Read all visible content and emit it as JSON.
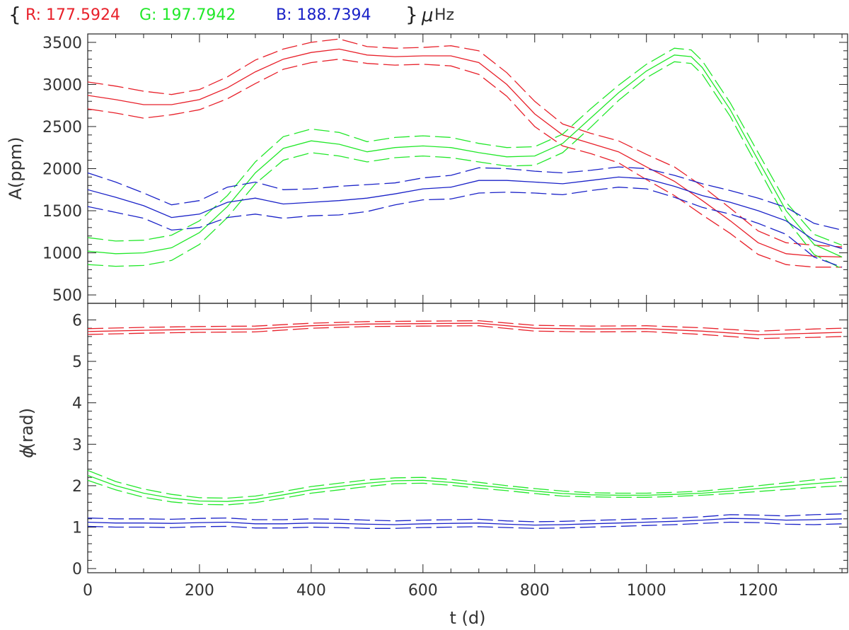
{
  "title": {
    "open": "{",
    "r_label": "R: 177.5924",
    "g_label": "G: 197.7942",
    "b_label": "B: 188.7394",
    "close": "}",
    "unit_mu": "μ",
    "unit_hz": "Hz"
  },
  "colors": {
    "R": "#e8202a",
    "G": "#22e82a",
    "B": "#1a22c8",
    "axis": "#222222",
    "text": "#333333"
  },
  "chart_data": [
    {
      "type": "line",
      "panel": "amplitude",
      "ylabel": "A(ppm)",
      "xlabel": "",
      "xlim": [
        0,
        1360
      ],
      "ylim": [
        400,
        3600
      ],
      "yticks": [
        500,
        1000,
        1500,
        2000,
        2500,
        3000,
        3500
      ],
      "ytick_labels": [
        "500",
        "1000",
        "1500",
        "2000",
        "2500",
        "3000",
        "3500"
      ],
      "band_style": "dashed upper and lower bounds around solid central line",
      "series": [
        {
          "color_key": "R",
          "x": [
            0,
            50,
            100,
            150,
            200,
            250,
            300,
            350,
            400,
            450,
            500,
            550,
            600,
            650,
            700,
            750,
            800,
            850,
            900,
            950,
            1000,
            1050,
            1100,
            1150,
            1200,
            1250,
            1300,
            1350
          ],
          "y": [
            2870,
            2820,
            2760,
            2760,
            2820,
            2960,
            3150,
            3300,
            3380,
            3420,
            3350,
            3330,
            3340,
            3340,
            3260,
            3000,
            2650,
            2400,
            2300,
            2200,
            2020,
            1850,
            1620,
            1380,
            1120,
            990,
            960,
            950
          ],
          "err": [
            160,
            160,
            160,
            120,
            120,
            130,
            140,
            120,
            120,
            120,
            100,
            100,
            100,
            120,
            140,
            140,
            150,
            130,
            120,
            130,
            150,
            170,
            170,
            150,
            140,
            130,
            130,
            120
          ]
        },
        {
          "color_key": "G",
          "x": [
            0,
            50,
            100,
            150,
            200,
            250,
            300,
            350,
            400,
            450,
            500,
            550,
            600,
            650,
            700,
            750,
            800,
            850,
            900,
            950,
            1000,
            1050,
            1080,
            1100,
            1150,
            1200,
            1250,
            1300,
            1350
          ],
          "y": [
            1020,
            990,
            1000,
            1060,
            1240,
            1550,
            1950,
            2240,
            2330,
            2290,
            2200,
            2250,
            2270,
            2250,
            2190,
            2140,
            2150,
            2300,
            2600,
            2900,
            3160,
            3350,
            3330,
            3200,
            2700,
            2100,
            1500,
            1100,
            950
          ],
          "err": [
            160,
            150,
            150,
            150,
            140,
            130,
            130,
            140,
            140,
            140,
            120,
            120,
            120,
            120,
            110,
            110,
            110,
            110,
            110,
            90,
            80,
            80,
            80,
            80,
            80,
            90,
            100,
            120,
            140
          ]
        },
        {
          "color_key": "B",
          "x": [
            0,
            50,
            100,
            150,
            200,
            250,
            300,
            350,
            400,
            450,
            500,
            550,
            600,
            650,
            700,
            750,
            800,
            850,
            900,
            950,
            1000,
            1050,
            1100,
            1150,
            1200,
            1250,
            1300,
            1350
          ],
          "y": [
            1750,
            1660,
            1560,
            1420,
            1460,
            1600,
            1650,
            1580,
            1600,
            1620,
            1650,
            1700,
            1760,
            1780,
            1860,
            1860,
            1840,
            1820,
            1860,
            1900,
            1880,
            1790,
            1680,
            1600,
            1500,
            1380,
            1150,
            1050
          ],
          "err": [
            200,
            180,
            150,
            150,
            160,
            180,
            190,
            170,
            160,
            170,
            160,
            130,
            130,
            140,
            150,
            140,
            130,
            130,
            120,
            120,
            120,
            130,
            140,
            140,
            150,
            160,
            200,
            220
          ]
        }
      ]
    },
    {
      "type": "line",
      "panel": "phase",
      "ylabel_symbol": "ϕ",
      "ylabel_text": "(rad)",
      "xlabel": "t (d)",
      "xlim": [
        0,
        1360
      ],
      "ylim": [
        -0.1,
        6.4
      ],
      "yticks": [
        0,
        1,
        2,
        3,
        4,
        5,
        6
      ],
      "ytick_labels": [
        "0",
        "1",
        "2",
        "3",
        "4",
        "5",
        "6"
      ],
      "xticks": [
        0,
        200,
        400,
        600,
        800,
        1000,
        1200
      ],
      "xtick_labels": [
        "0",
        "200",
        "400",
        "600",
        "800",
        "1000",
        "1200"
      ],
      "series": [
        {
          "color_key": "R",
          "x": [
            0,
            100,
            200,
            300,
            400,
            500,
            600,
            700,
            800,
            900,
            1000,
            1100,
            1200,
            1300,
            1350
          ],
          "y": [
            5.72,
            5.75,
            5.77,
            5.78,
            5.86,
            5.9,
            5.91,
            5.92,
            5.8,
            5.78,
            5.79,
            5.73,
            5.64,
            5.68,
            5.7
          ],
          "err": [
            0.07,
            0.07,
            0.07,
            0.07,
            0.06,
            0.06,
            0.06,
            0.06,
            0.07,
            0.07,
            0.07,
            0.08,
            0.09,
            0.1,
            0.1
          ]
        },
        {
          "color_key": "G",
          "x": [
            0,
            50,
            100,
            150,
            200,
            250,
            300,
            350,
            400,
            450,
            500,
            550,
            600,
            650,
            700,
            750,
            800,
            850,
            900,
            950,
            1000,
            1050,
            1100,
            1150,
            1200,
            1250,
            1300,
            1350
          ],
          "y": [
            2.25,
            2.0,
            1.82,
            1.7,
            1.63,
            1.62,
            1.67,
            1.78,
            1.9,
            1.98,
            2.06,
            2.12,
            2.13,
            2.08,
            2.01,
            1.94,
            1.87,
            1.81,
            1.78,
            1.77,
            1.77,
            1.79,
            1.82,
            1.87,
            1.93,
            1.99,
            2.05,
            2.1
          ],
          "err": [
            0.12,
            0.1,
            0.1,
            0.09,
            0.08,
            0.08,
            0.08,
            0.08,
            0.08,
            0.08,
            0.08,
            0.07,
            0.07,
            0.07,
            0.07,
            0.06,
            0.06,
            0.06,
            0.05,
            0.05,
            0.05,
            0.05,
            0.05,
            0.06,
            0.07,
            0.08,
            0.09,
            0.1
          ]
        },
        {
          "color_key": "B",
          "x": [
            0,
            50,
            100,
            150,
            200,
            250,
            300,
            350,
            400,
            450,
            500,
            550,
            600,
            650,
            700,
            750,
            800,
            850,
            900,
            950,
            1000,
            1050,
            1100,
            1150,
            1200,
            1250,
            1300,
            1350
          ],
          "y": [
            1.12,
            1.1,
            1.1,
            1.09,
            1.11,
            1.12,
            1.08,
            1.08,
            1.1,
            1.09,
            1.07,
            1.06,
            1.08,
            1.09,
            1.1,
            1.07,
            1.05,
            1.06,
            1.08,
            1.1,
            1.12,
            1.14,
            1.17,
            1.21,
            1.2,
            1.17,
            1.18,
            1.2
          ],
          "err": [
            0.1,
            0.1,
            0.1,
            0.1,
            0.1,
            0.1,
            0.1,
            0.1,
            0.1,
            0.1,
            0.1,
            0.09,
            0.09,
            0.09,
            0.09,
            0.08,
            0.08,
            0.08,
            0.08,
            0.08,
            0.08,
            0.08,
            0.08,
            0.09,
            0.09,
            0.1,
            0.12,
            0.12
          ]
        }
      ]
    }
  ]
}
